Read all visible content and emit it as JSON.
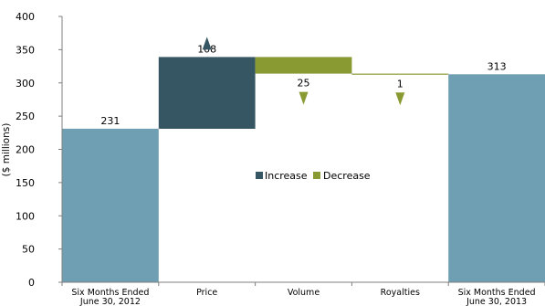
{
  "chart_data": {
    "type": "bar",
    "subtype": "waterfall",
    "ylabel": "($ millions)",
    "ylim": [
      0,
      400
    ],
    "yticks": [
      0,
      50,
      100,
      150,
      200,
      250,
      300,
      350,
      400
    ],
    "grid": false,
    "legend_position": "center",
    "categories": [
      "Six Months Ended June 30, 2012",
      "Price",
      "Volume",
      "Royalties",
      "Six Months Ended June 30, 2013"
    ],
    "bars": [
      {
        "category": "Six Months Ended June 30, 2012",
        "kind": "total",
        "value": 231,
        "label": "231"
      },
      {
        "category": "Price",
        "kind": "increase",
        "value": 108,
        "label": "108"
      },
      {
        "category": "Volume",
        "kind": "decrease",
        "value": 25,
        "label": "25"
      },
      {
        "category": "Royalties",
        "kind": "decrease",
        "value": 1,
        "label": "1"
      },
      {
        "category": "Six Months Ended June 30, 2013",
        "kind": "total",
        "value": 313,
        "label": "313"
      }
    ],
    "legend": [
      {
        "key": "increase",
        "label": "Increase"
      },
      {
        "key": "decrease",
        "label": "Decrease"
      }
    ],
    "colors": {
      "total": "#6e9fb2",
      "increase": "#355662",
      "decrease": "#8a9a32",
      "axis": "#7f7f7f"
    }
  }
}
